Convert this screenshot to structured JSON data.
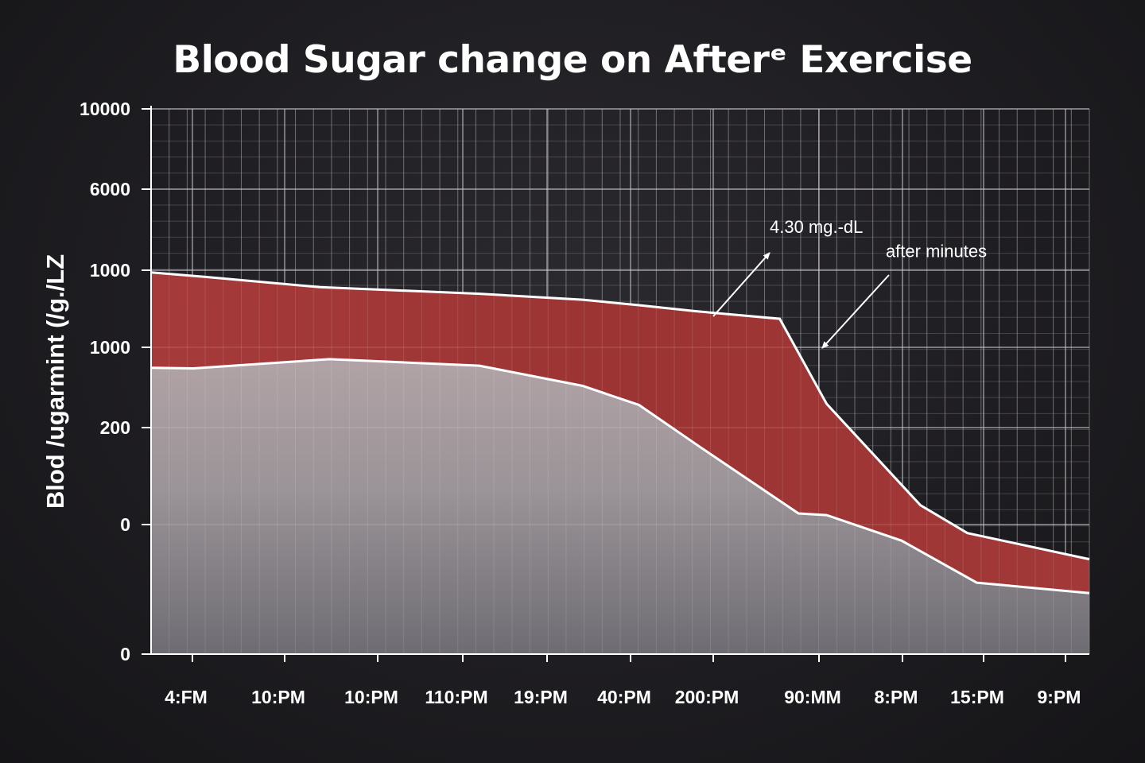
{
  "colors": {
    "background": "#1c1b1f",
    "upper_band": "#9e3636",
    "lower_band": "#9a9396",
    "grid": "#8a8a8e",
    "outline": "#ffffff"
  },
  "chart_data": {
    "type": "area",
    "title": "Blood Sugar change on Afterᵉ Exercise",
    "ylabel": "Blod /ugarmint (/g./LZ",
    "xlabel": "",
    "ytick_labels": [
      "10000",
      "6000",
      "1000",
      "1000",
      "200",
      "0",
      "0"
    ],
    "xtick_labels": [
      "4:FM",
      "10:PM",
      "10:PM",
      "110:PM",
      "19:PM",
      "40:PM",
      "200:PM",
      "90:MM",
      "8:PM",
      "15:PM",
      "9:PM"
    ],
    "x_domain": [
      0,
      100
    ],
    "y_domain": [
      0,
      100
    ],
    "grid": true,
    "series": [
      {
        "name": "upper",
        "x": [
          0,
          5,
          18,
          35,
          46,
          52,
          58,
          67,
          72,
          82,
          87,
          100
        ],
        "y": [
          70,
          69.3,
          67.3,
          66.1,
          65,
          64,
          62.9,
          61.5,
          45.9,
          27.3,
          22.2,
          17.4
        ]
      },
      {
        "name": "lower",
        "x": [
          0,
          4.5,
          19,
          35,
          46,
          52,
          58.5,
          69,
          72,
          80,
          88,
          100
        ],
        "y": [
          52.5,
          52.4,
          54.1,
          52.9,
          49.2,
          45.7,
          38,
          25.8,
          25.5,
          20.8,
          13.1,
          11.2
        ]
      }
    ],
    "annotations": [
      {
        "text": "4.30 mg.-dL",
        "x": 60,
        "y": 77
      },
      {
        "text": "after minutes",
        "x": 78.3,
        "y": 72.5
      }
    ]
  }
}
